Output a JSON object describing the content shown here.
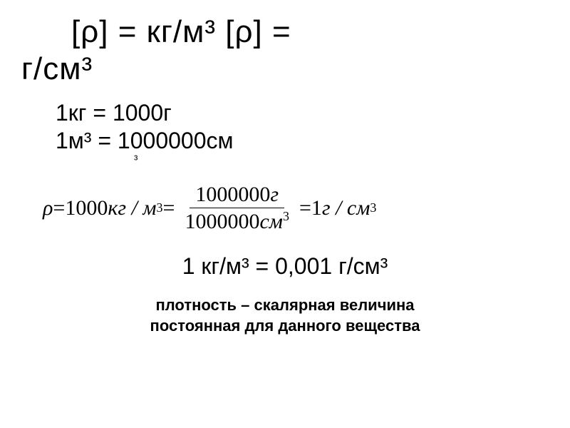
{
  "colors": {
    "text": "#000000",
    "background": "#ffffff"
  },
  "header": {
    "part1": "[ρ] = кг/м³   [ρ] =",
    "part2": "г/см³",
    "fontsize": 44
  },
  "conversions": {
    "mass": "1кг   = 1000г",
    "volume": "1м³ = 1000000см",
    "volume_exp_trail": "³",
    "fontsize": 32
  },
  "formula": {
    "rho": "ρ",
    "eq": " = ",
    "lhs_val": "1000",
    "lhs_unit": "кг / м",
    "lhs_exp": "3",
    "frac_num_val": "1000000",
    "frac_num_unit": "г",
    "frac_den_val": "1000000",
    "frac_den_unit": "см",
    "frac_den_exp": "3",
    "rhs_val": "1",
    "rhs_unit": "г / см",
    "rhs_exp": "3",
    "fontsize": 30
  },
  "result": {
    "text": "1 кг/м³ = 0,001 г/см³",
    "fontsize": 32
  },
  "footer": {
    "line1": "плотность – скалярная величина",
    "line2": "постоянная для данного вещества",
    "fontsize": 22,
    "weight": "bold"
  }
}
